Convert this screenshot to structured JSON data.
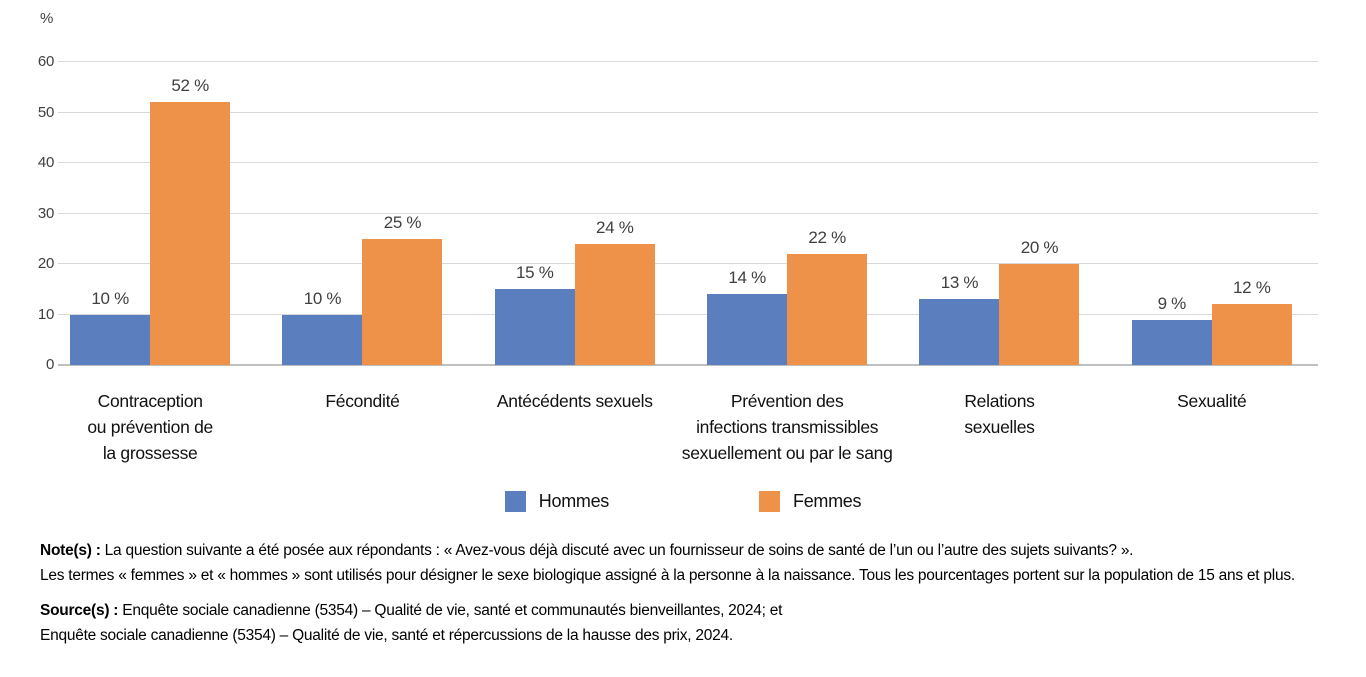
{
  "chart_data": {
    "type": "bar",
    "unit_label": "%",
    "categories": [
      "Contraception\nou prévention de\nla grossesse",
      "Fécondité",
      "Antécédents sexuels",
      "Prévention des\ninfections transmissibles\nsexuellement ou par le sang",
      "Relations\nsexuelles",
      "Sexualité"
    ],
    "series": [
      {
        "name": "Hommes",
        "color": "#5b7ebe",
        "values": [
          10,
          10,
          15,
          14,
          13,
          9
        ]
      },
      {
        "name": "Femmes",
        "color": "#ee9149",
        "values": [
          52,
          25,
          24,
          22,
          20,
          12
        ]
      }
    ],
    "value_suffix": " %",
    "ylim": [
      0,
      60
    ],
    "yticks": [
      0,
      10,
      20,
      30,
      40,
      50,
      60
    ],
    "grid": true,
    "legend_position": "bottom",
    "gridline_color": "#d9d9d9",
    "baseline_color": "#bfbfbf"
  },
  "notes": {
    "note_label": "Note(s) :",
    "note_line1": "La question suivante a été posée aux répondants : « Avez-vous déjà discuté avec un fournisseur de soins de santé de l’un ou l’autre des sujets suivants? ».",
    "note_line2": "Les termes « femmes » et « hommes » sont utilisés pour désigner le sexe biologique assigné à la personne à la naissance. Tous les pourcentages portent sur la population de 15 ans et plus.",
    "source_label": "Source(s) :",
    "source_line1": "Enquête sociale canadienne (5354) – Qualité de vie, santé et communautés bienveillantes, 2024; et",
    "source_line2": "Enquête sociale canadienne (5354) – Qualité de vie, santé et répercussions de la hausse des prix, 2024."
  }
}
